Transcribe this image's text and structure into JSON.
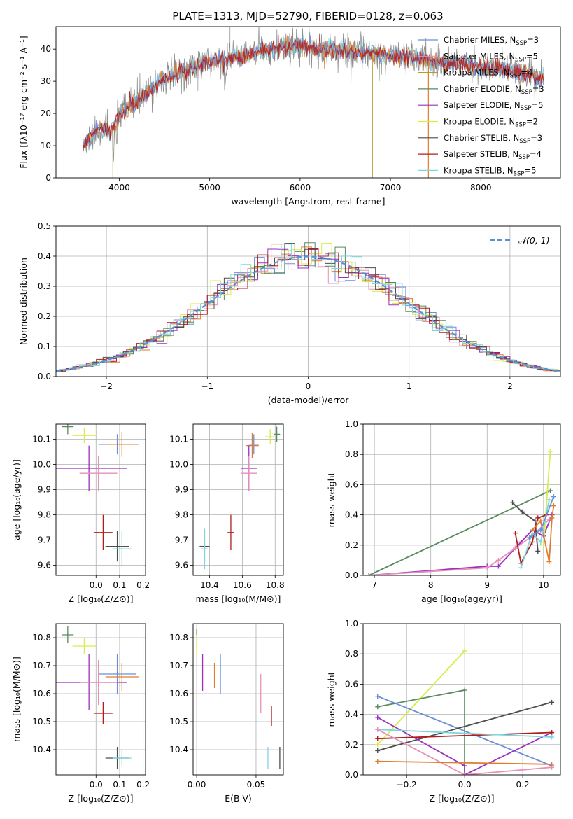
{
  "page_title": "PLATE=1313, MJD=52790, FIBERID=0128, z=0.063",
  "colors": {
    "Chabrier MILES": "#6a8fd8",
    "Salpeter MILES": "#e890b8",
    "Kroupa MILES": "#b79a2c",
    "Chabrier ELODIE": "#5a8a5e",
    "Salpeter ELODIE": "#9b30c0",
    "Kroupa ELODIE": "#d8ec4c",
    "Chabrier STELIB": "#4d4d4d",
    "Salpeter STELIB": "#b01e1e",
    "Kroupa STELIB": "#7ed6e0",
    "Orange": "#e07d2e",
    "Gauss": "#5b8fd6"
  },
  "chart_data": [
    {
      "id": "spectrum",
      "type": "line",
      "title": "PLATE=1313, MJD=52790, FIBERID=0128, z=0.063",
      "xlabel": "wavelength [Angstrom, rest frame]",
      "ylabel": "Flux [fλ10⁻¹⁷ erg cm⁻² s⁻¹ A⁻¹]",
      "xlim": [
        3300,
        8880
      ],
      "ylim": [
        0,
        47
      ],
      "xticks": [
        "4000",
        "5000",
        "6000",
        "7000",
        "8000"
      ],
      "xtick_values": [
        4000,
        5000,
        6000,
        7000,
        8000
      ],
      "yticks": [
        "0",
        "10",
        "20",
        "30",
        "40"
      ],
      "ytick_values": [
        0,
        10,
        20,
        30,
        40
      ],
      "continuum": [
        [
          3600,
          10
        ],
        [
          3700,
          13
        ],
        [
          3800,
          16
        ],
        [
          3900,
          14
        ],
        [
          4000,
          19
        ],
        [
          4100,
          22
        ],
        [
          4200,
          24
        ],
        [
          4300,
          26
        ],
        [
          4400,
          29
        ],
        [
          4500,
          31
        ],
        [
          4600,
          32
        ],
        [
          4700,
          33
        ],
        [
          4800,
          34
        ],
        [
          4900,
          35
        ],
        [
          5000,
          36
        ],
        [
          5100,
          36.5
        ],
        [
          5200,
          37
        ],
        [
          5300,
          37.5
        ],
        [
          5400,
          38
        ],
        [
          5500,
          39
        ],
        [
          5600,
          39.5
        ],
        [
          5700,
          40
        ],
        [
          5800,
          40.5
        ],
        [
          5900,
          41
        ],
        [
          6000,
          41
        ],
        [
          6100,
          40.5
        ],
        [
          6200,
          40
        ],
        [
          6300,
          40
        ],
        [
          6400,
          39.5
        ],
        [
          6500,
          39.5
        ],
        [
          6600,
          39
        ],
        [
          6700,
          39
        ],
        [
          6800,
          39
        ],
        [
          6900,
          38.5
        ],
        [
          7000,
          38
        ],
        [
          7100,
          38
        ],
        [
          7200,
          37.5
        ],
        [
          7300,
          37
        ],
        [
          7400,
          36.5
        ],
        [
          7500,
          36
        ],
        [
          7600,
          35.5
        ],
        [
          7700,
          36
        ],
        [
          7800,
          35.5
        ],
        [
          7900,
          35
        ],
        [
          8000,
          34.5
        ],
        [
          8100,
          34
        ],
        [
          8200,
          34
        ],
        [
          8300,
          33.5
        ],
        [
          8400,
          33
        ],
        [
          8500,
          32
        ],
        [
          8600,
          31
        ],
        [
          8700,
          30
        ]
      ],
      "legend_location": "upper right",
      "legend": [
        {
          "label": "Chabrier MILES, N",
          "sub": "SSP",
          "suffix": "=3",
          "key": "Chabrier MILES"
        },
        {
          "label": "Salpeter MILES, N",
          "sub": "SSP",
          "suffix": "=5",
          "key": "Salpeter MILES"
        },
        {
          "label": "Kroupa MILES, N",
          "sub": "SSP",
          "suffix": "=4",
          "key": "Kroupa MILES"
        },
        {
          "label": "Chabrier ELODIE, N",
          "sub": "SSP",
          "suffix": "=3",
          "key": "Chabrier ELODIE"
        },
        {
          "label": "Salpeter ELODIE, N",
          "sub": "SSP",
          "suffix": "=5",
          "key": "Salpeter ELODIE"
        },
        {
          "label": "Kroupa ELODIE, N",
          "sub": "SSP",
          "suffix": "=2",
          "key": "Kroupa ELODIE"
        },
        {
          "label": "Chabrier STELIB, N",
          "sub": "SSP",
          "suffix": "=3",
          "key": "Chabrier STELIB"
        },
        {
          "label": "Salpeter STELIB, N",
          "sub": "SSP",
          "suffix": "=4",
          "key": "Salpeter STELIB"
        },
        {
          "label": "Kroupa STELIB, N",
          "sub": "SSP",
          "suffix": "=5",
          "key": "Kroupa STELIB"
        }
      ]
    },
    {
      "id": "residuals",
      "type": "step",
      "xlabel": "(data-model)/error",
      "ylabel": "Normed distribution",
      "xlim": [
        -2.5,
        2.5
      ],
      "ylim": [
        0,
        0.5
      ],
      "xticks": [
        "−2",
        "−1",
        "0",
        "1",
        "2"
      ],
      "xtick_values": [
        -2,
        -1,
        0,
        1,
        2
      ],
      "yticks": [
        "0.0",
        "0.1",
        "0.2",
        "0.3",
        "0.4",
        "0.5"
      ],
      "ytick_values": [
        0,
        0.1,
        0.2,
        0.3,
        0.4,
        0.5
      ],
      "gauss_label": "𝒩(0, 1)",
      "legend_location": "upper right",
      "grid": true
    },
    {
      "id": "age_vs_Z",
      "type": "errorbar",
      "xlabel": "Z [log₁₀(Z/Z⊙)]",
      "ylabel": "age  [log₁₀(age/yr)]",
      "xlim": [
        -0.17,
        0.21
      ],
      "ylim": [
        9.56,
        10.16
      ],
      "xticks": [
        "0.0",
        "0.1",
        "0.2"
      ],
      "xtick_values": [
        0,
        0.1,
        0.2
      ],
      "yticks": [
        "9.6",
        "9.7",
        "9.8",
        "9.9",
        "10.0",
        "10.1"
      ],
      "ytick_values": [
        9.6,
        9.7,
        9.8,
        9.9,
        10.0,
        10.1
      ],
      "grid": true,
      "points": [
        {
          "key": "Chabrier ELODIE",
          "x": -0.12,
          "xerr": 0.025,
          "y": 10.15,
          "yerr": 0.03
        },
        {
          "key": "Kroupa ELODIE",
          "x": -0.05,
          "xerr": 0.05,
          "y": 10.115,
          "yerr": 0.03
        },
        {
          "key": "Chabrier MILES",
          "x": 0.09,
          "xerr": 0.08,
          "y": 10.08,
          "yerr": 0.04
        },
        {
          "key": "Orange",
          "x": 0.11,
          "xerr": 0.07,
          "y": 10.08,
          "yerr": 0.05
        },
        {
          "key": "Salpeter ELODIE",
          "x": -0.03,
          "xerr": 0.16,
          "y": 9.985,
          "yerr": 0.09
        },
        {
          "key": "Salpeter MILES",
          "x": 0.01,
          "xerr": 0.08,
          "y": 9.965,
          "yerr": 0.07
        },
        {
          "key": "Salpeter STELIB",
          "x": 0.03,
          "xerr": 0.04,
          "y": 9.73,
          "yerr": 0.07
        },
        {
          "key": "Chabrier STELIB",
          "x": 0.09,
          "xerr": 0.05,
          "y": 9.675,
          "yerr": 0.06
        },
        {
          "key": "Kroupa STELIB",
          "x": 0.11,
          "xerr": 0.04,
          "y": 9.665,
          "yerr": 0.07
        }
      ]
    },
    {
      "id": "age_vs_mass",
      "type": "errorbar",
      "xlabel": "mass [log₁₀(M/M⊙)]",
      "ylabel": "",
      "xlim": [
        10.3,
        10.85
      ],
      "ylim": [
        9.56,
        10.16
      ],
      "xticks": [
        "10.4",
        "10.6",
        "10.8"
      ],
      "xtick_values": [
        10.4,
        10.6,
        10.8
      ],
      "yticks": [
        "9.6",
        "9.7",
        "9.8",
        "9.9",
        "10.0",
        "10.1"
      ],
      "ytick_values": [
        9.6,
        9.7,
        9.8,
        9.9,
        10.0,
        10.1
      ],
      "grid": true,
      "points": [
        {
          "key": "Chabrier ELODIE",
          "x": 10.81,
          "xerr": 0.02,
          "y": 10.12,
          "yerr": 0.03
        },
        {
          "key": "Kroupa ELODIE",
          "x": 10.77,
          "xerr": 0.03,
          "y": 10.11,
          "yerr": 0.03
        },
        {
          "key": "Chabrier MILES",
          "x": 10.67,
          "xerr": 0.03,
          "y": 10.08,
          "yerr": 0.04
        },
        {
          "key": "Orange",
          "x": 10.66,
          "xerr": 0.04,
          "y": 10.075,
          "yerr": 0.05
        },
        {
          "key": "Salpeter ELODIE",
          "x": 10.64,
          "xerr": 0.05,
          "y": 9.985,
          "yerr": 0.09
        },
        {
          "key": "Salpeter MILES",
          "x": 10.64,
          "xerr": 0.05,
          "y": 9.965,
          "yerr": 0.07
        },
        {
          "key": "Salpeter STELIB",
          "x": 10.53,
          "xerr": 0.02,
          "y": 9.73,
          "yerr": 0.07
        },
        {
          "key": "Chabrier STELIB",
          "x": 10.37,
          "xerr": 0.03,
          "y": 9.675,
          "yerr": 0.06
        },
        {
          "key": "Kroupa STELIB",
          "x": 10.37,
          "xerr": 0.02,
          "y": 9.665,
          "yerr": 0.08
        }
      ]
    },
    {
      "id": "mass_weight_vs_age",
      "type": "line",
      "xlabel": "age  [log₁₀(age/yr)]",
      "ylabel": "mass weight",
      "xlim": [
        6.8,
        10.3
      ],
      "ylim": [
        0,
        1.0
      ],
      "xticks": [
        "7",
        "8",
        "9",
        "10"
      ],
      "xtick_values": [
        7,
        8,
        9,
        10
      ],
      "yticks": [
        "0.0",
        "0.2",
        "0.4",
        "0.6",
        "0.8",
        "1.0"
      ],
      "ytick_values": [
        0,
        0.2,
        0.4,
        0.6,
        0.8,
        1.0
      ],
      "grid": true,
      "series": [
        {
          "key": "Chabrier ELODIE",
          "x": [
            6.9,
            10.12
          ],
          "y": [
            0.0,
            0.56
          ]
        },
        {
          "key": "Salpeter ELODIE",
          "x": [
            6.9,
            9.0,
            9.2,
            9.6,
            9.8,
            10.0,
            10.15
          ],
          "y": [
            0.0,
            0.06,
            0.06,
            0.22,
            0.3,
            0.26,
            0.4
          ]
        },
        {
          "key": "Salpeter MILES",
          "x": [
            6.9,
            9.0,
            9.2,
            9.5,
            9.8,
            10.1
          ],
          "y": [
            0.0,
            0.05,
            0.1,
            0.18,
            0.26,
            0.37
          ]
        },
        {
          "key": "Kroupa ELODIE",
          "x": [
            10.0,
            10.12
          ],
          "y": [
            0.2,
            0.82
          ]
        },
        {
          "key": "Chabrier STELIB",
          "x": [
            9.45,
            9.62,
            9.85,
            9.9
          ],
          "y": [
            0.48,
            0.42,
            0.36,
            0.16
          ]
        },
        {
          "key": "Salpeter STELIB",
          "x": [
            9.5,
            9.6,
            9.8,
            9.9,
            10.05
          ],
          "y": [
            0.28,
            0.08,
            0.22,
            0.38,
            0.4
          ]
        },
        {
          "key": "Orange",
          "x": [
            9.8,
            9.95,
            10.1,
            10.15,
            10.18
          ],
          "y": [
            0.3,
            0.36,
            0.09,
            0.38,
            0.46
          ]
        },
        {
          "key": "Kroupa STELIB",
          "x": [
            9.6,
            9.8,
            9.95,
            10.1
          ],
          "y": [
            0.05,
            0.28,
            0.22,
            0.5
          ]
        },
        {
          "key": "Chabrier MILES",
          "x": [
            9.75,
            9.95,
            10.18
          ],
          "y": [
            0.25,
            0.3,
            0.52
          ]
        }
      ]
    },
    {
      "id": "mass_vs_Z",
      "type": "errorbar",
      "xlabel": "Z [log₁₀(Z/Z⊙)]",
      "ylabel": "mass [log₁₀(M/M⊙)]",
      "xlim": [
        -0.17,
        0.21
      ],
      "ylim": [
        10.31,
        10.85
      ],
      "xticks": [
        "0.0",
        "0.1",
        "0.2"
      ],
      "xtick_values": [
        0,
        0.1,
        0.2
      ],
      "yticks": [
        "10.4",
        "10.5",
        "10.6",
        "10.7",
        "10.8"
      ],
      "ytick_values": [
        10.4,
        10.5,
        10.6,
        10.7,
        10.8
      ],
      "grid": true,
      "points": [
        {
          "key": "Chabrier ELODIE",
          "x": -0.12,
          "xerr": 0.025,
          "y": 10.81,
          "yerr": 0.03
        },
        {
          "key": "Kroupa ELODIE",
          "x": -0.05,
          "xerr": 0.05,
          "y": 10.77,
          "yerr": 0.03
        },
        {
          "key": "Chabrier MILES",
          "x": 0.09,
          "xerr": 0.08,
          "y": 10.67,
          "yerr": 0.07
        },
        {
          "key": "Orange",
          "x": 0.11,
          "xerr": 0.07,
          "y": 10.66,
          "yerr": 0.05
        },
        {
          "key": "Salpeter ELODIE",
          "x": -0.03,
          "xerr": 0.16,
          "y": 10.64,
          "yerr": 0.1
        },
        {
          "key": "Salpeter MILES",
          "x": 0.01,
          "xerr": 0.08,
          "y": 10.64,
          "yerr": 0.08
        },
        {
          "key": "Salpeter STELIB",
          "x": 0.03,
          "xerr": 0.04,
          "y": 10.53,
          "yerr": 0.04
        },
        {
          "key": "Chabrier STELIB",
          "x": 0.09,
          "xerr": 0.05,
          "y": 10.37,
          "yerr": 0.04
        },
        {
          "key": "Kroupa STELIB",
          "x": 0.11,
          "xerr": 0.04,
          "y": 10.37,
          "yerr": 0.03
        }
      ]
    },
    {
      "id": "mass_vs_EBV",
      "type": "errorbar",
      "xlabel": "E(B-V)",
      "ylabel": "",
      "xlim": [
        -0.003,
        0.073
      ],
      "ylim": [
        10.31,
        10.85
      ],
      "xticks": [
        "0.00",
        "0.05"
      ],
      "xtick_values": [
        0,
        0.05
      ],
      "yticks": [
        "10.4",
        "10.5",
        "10.6",
        "10.7",
        "10.8"
      ],
      "ytick_values": [
        10.4,
        10.5,
        10.6,
        10.7,
        10.8
      ],
      "grid": true,
      "points": [
        {
          "key": "Chabrier ELODIE",
          "x": 0.0,
          "xerr": 0,
          "y": 10.8,
          "yerr": 0.03
        },
        {
          "key": "Kroupa ELODIE",
          "x": 0.0,
          "xerr": 0,
          "y": 10.77,
          "yerr": 0.04
        },
        {
          "key": "Salpeter ELODIE",
          "x": 0.005,
          "xerr": 0,
          "y": 10.675,
          "yerr": 0.065
        },
        {
          "key": "Orange",
          "x": 0.015,
          "xerr": 0,
          "y": 10.665,
          "yerr": 0.045
        },
        {
          "key": "Chabrier MILES",
          "x": 0.02,
          "xerr": 0,
          "y": 10.67,
          "yerr": 0.07
        },
        {
          "key": "Salpeter MILES",
          "x": 0.054,
          "xerr": 0,
          "y": 10.6,
          "yerr": 0.07
        },
        {
          "key": "Salpeter STELIB",
          "x": 0.063,
          "xerr": 0,
          "y": 10.52,
          "yerr": 0.035
        },
        {
          "key": "Kroupa STELIB",
          "x": 0.06,
          "xerr": 0,
          "y": 10.37,
          "yerr": 0.04
        },
        {
          "key": "Chabrier STELIB",
          "x": 0.07,
          "xerr": 0,
          "y": 10.37,
          "yerr": 0.04
        }
      ]
    },
    {
      "id": "mass_weight_vs_Z",
      "type": "line",
      "xlabel": "Z [log₁₀(Z/Z⊙)]",
      "ylabel": "mass weight",
      "xlim": [
        -0.35,
        0.33
      ],
      "ylim": [
        0,
        1.0
      ],
      "xticks": [
        "−0.2",
        "0.0",
        "0.2"
      ],
      "xtick_values": [
        -0.2,
        0,
        0.2
      ],
      "yticks": [
        "0.0",
        "0.2",
        "0.4",
        "0.6",
        "0.8",
        "1.0"
      ],
      "ytick_values": [
        0,
        0.2,
        0.4,
        0.6,
        0.8,
        1.0
      ],
      "grid": true,
      "series": [
        {
          "key": "Kroupa ELODIE",
          "x": [
            -0.3,
            0.0
          ],
          "y": [
            0.2,
            0.82
          ]
        },
        {
          "key": "Chabrier ELODIE",
          "x": [
            -0.3,
            0.0,
            0.0
          ],
          "y": [
            0.45,
            0.56,
            0.0
          ]
        },
        {
          "key": "Chabrier MILES",
          "x": [
            -0.3,
            0.3
          ],
          "y": [
            0.52,
            0.06
          ]
        },
        {
          "key": "Chabrier STELIB",
          "x": [
            -0.3,
            0.3
          ],
          "y": [
            0.16,
            0.48
          ]
        },
        {
          "key": "Salpeter ELODIE",
          "x": [
            -0.3,
            0.0,
            0.0,
            0.3
          ],
          "y": [
            0.38,
            0.06,
            0.0,
            0.28
          ]
        },
        {
          "key": "Salpeter STELIB",
          "x": [
            -0.3,
            0.3
          ],
          "y": [
            0.24,
            0.28
          ]
        },
        {
          "key": "Kroupa STELIB",
          "x": [
            -0.3,
            0.3
          ],
          "y": [
            0.3,
            0.25
          ]
        },
        {
          "key": "Salpeter MILES",
          "x": [
            -0.3,
            0.0,
            0.3
          ],
          "y": [
            0.3,
            0.0,
            0.05
          ]
        },
        {
          "key": "Orange",
          "x": [
            -0.3,
            0.3
          ],
          "y": [
            0.09,
            0.07
          ]
        }
      ]
    }
  ]
}
